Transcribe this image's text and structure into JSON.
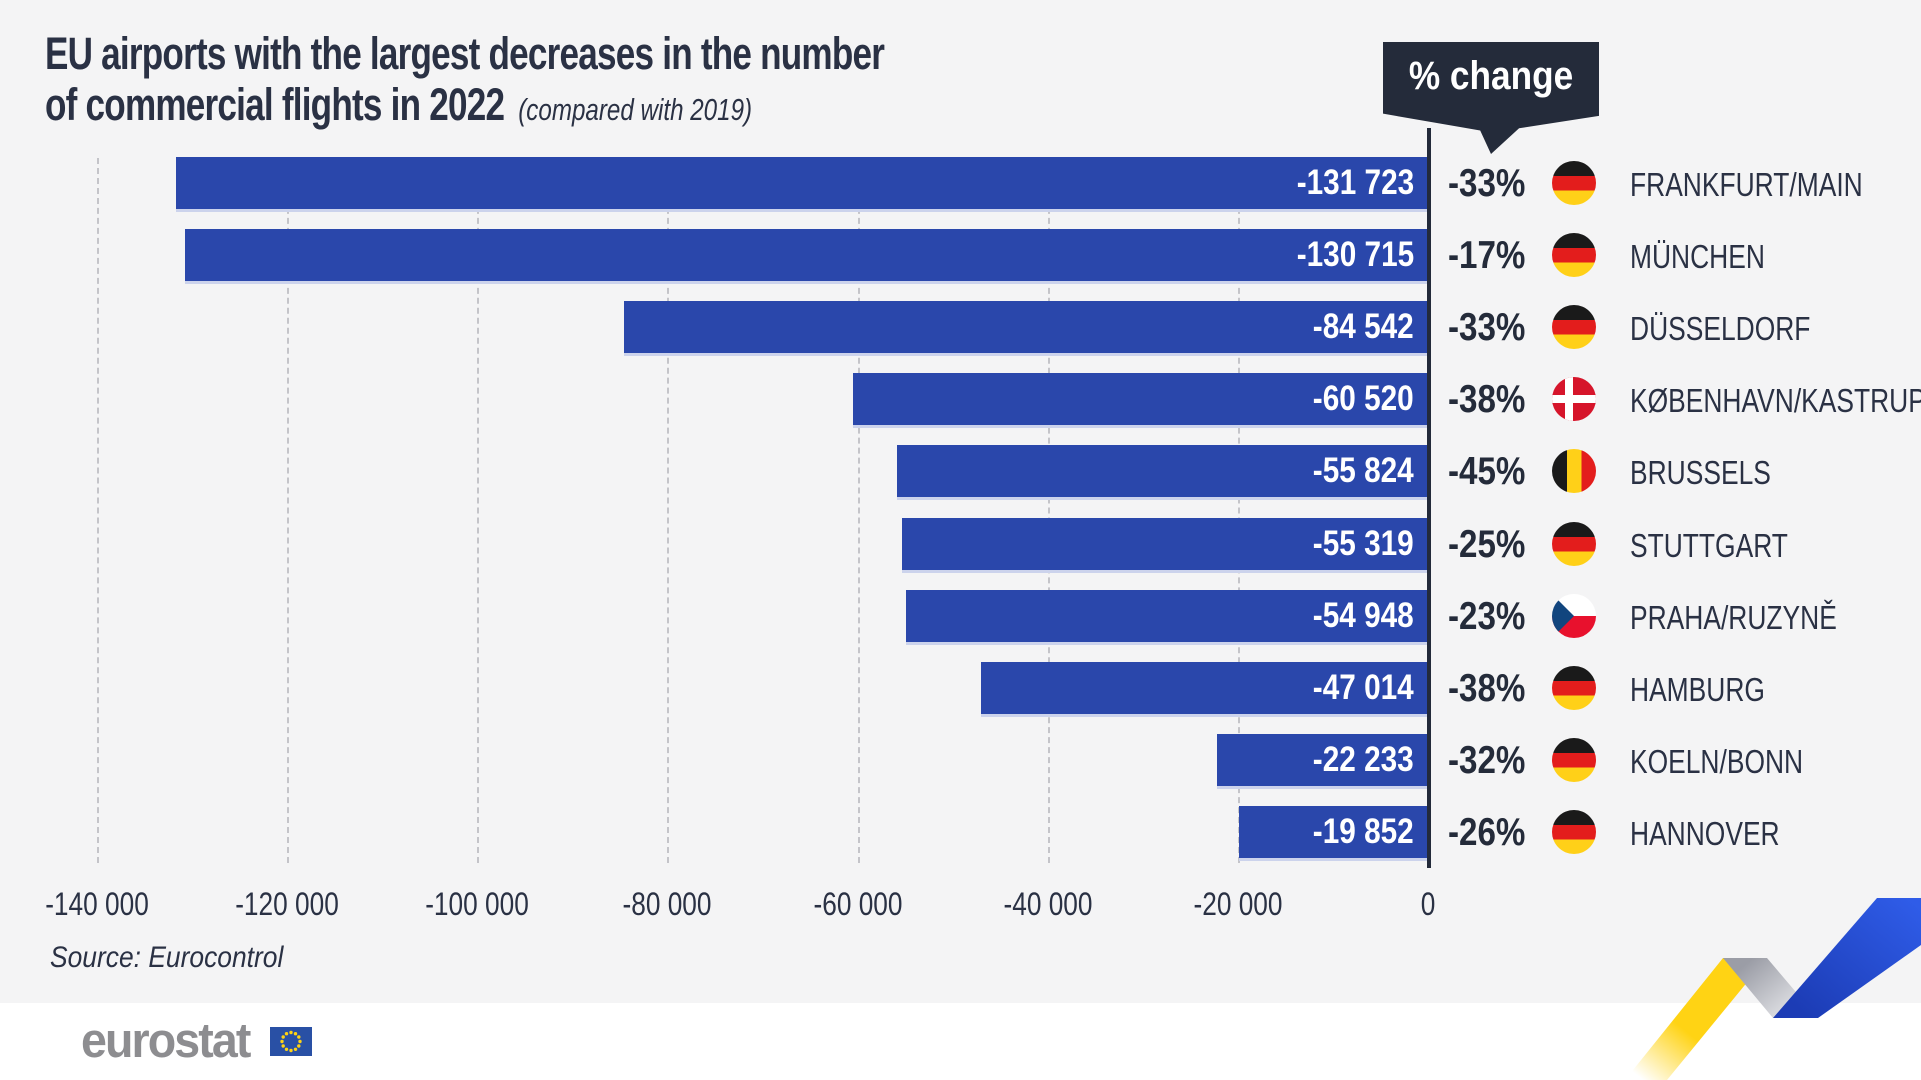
{
  "title": {
    "line1": "EU airports with the largest decreases in the number",
    "line2": "of commercial flights in 2022",
    "subtitle": "(compared with 2019)"
  },
  "badge": {
    "label": "% change"
  },
  "chart_data": {
    "type": "bar",
    "orientation": "horizontal",
    "title": "EU airports with the largest decreases in the number of commercial flights in 2022 (compared with 2019)",
    "categories": [
      "FRANKFURT/MAIN",
      "MÜNCHEN",
      "DÜSSELDORF",
      "KØBENHAVN/KASTRUP",
      "BRUSSELS",
      "STUTTGART",
      "PRAHA/RUZYNĚ",
      "HAMBURG",
      "KOELN/BONN",
      "HANNOVER"
    ],
    "series": [
      {
        "name": "Decrease in number of commercial flights 2022 vs 2019",
        "values": [
          -131723,
          -130715,
          -84542,
          -60520,
          -55824,
          -55319,
          -54948,
          -47014,
          -22233,
          -19852
        ]
      }
    ],
    "value_labels": [
      "-131 723",
      "-130 715",
      "-84 542",
      "-60 520",
      "-55 824",
      "-55 319",
      "-54 948",
      "-47 014",
      "-22 233",
      "-19 852"
    ],
    "pct_change": [
      "-33%",
      "-17%",
      "-33%",
      "-38%",
      "-45%",
      "-25%",
      "-23%",
      "-38%",
      "-32%",
      "-26%"
    ],
    "countries": [
      "germany",
      "germany",
      "germany",
      "denmark",
      "belgium",
      "germany",
      "czechia",
      "germany",
      "germany",
      "germany"
    ],
    "xlim": [
      -140000,
      0
    ],
    "x_ticks": [
      {
        "label": "-140 000",
        "value": -140000
      },
      {
        "label": "-120 000",
        "value": -120000
      },
      {
        "label": "-100 000",
        "value": -100000
      },
      {
        "label": "-80 000",
        "value": -80000
      },
      {
        "label": "-60 000",
        "value": -60000
      },
      {
        "label": "-40 000",
        "value": -40000
      },
      {
        "label": "-20 000",
        "value": -20000
      },
      {
        "label": "0",
        "value": 0
      }
    ],
    "grid": "vertical-dashed",
    "legend": "none",
    "bar_color": "#2a47ab"
  },
  "source": "Source: Eurocontrol",
  "footer": {
    "logo_text": "eurostat"
  },
  "colors": {
    "background": "#f4f4f5",
    "bar_blue": "#2a47ab",
    "dark_navy": "#242b3a",
    "text": "#2a3144",
    "footer_white": "#ffffff",
    "gridline": "#c4c4c9",
    "logo_gray": "#8d8d90",
    "eu_flag_blue": "#2950a5",
    "ribbon_yellow": "#ffd314",
    "ribbon_blue": "#2450dc",
    "ribbon_gray": "#a8aab3"
  }
}
